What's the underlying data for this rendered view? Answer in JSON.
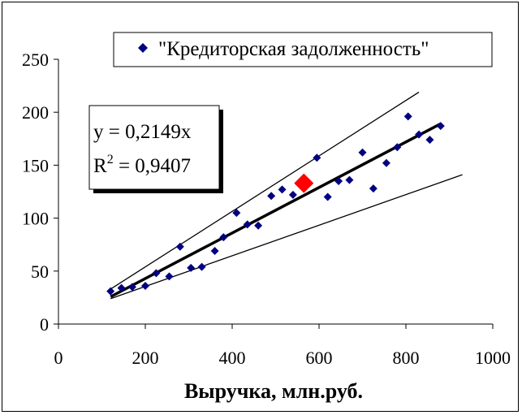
{
  "chart_data": {
    "type": "scatter",
    "xlabel": "Выручка, млн.руб.",
    "ylabel": "",
    "xlim": [
      0,
      1000
    ],
    "ylim": [
      0,
      250
    ],
    "x_ticks": [
      "0",
      "200",
      "400",
      "600",
      "800",
      "1000"
    ],
    "y_ticks": [
      "0",
      "50",
      "100",
      "150",
      "200",
      "250"
    ],
    "grid": false,
    "legend": {
      "position": "top-right",
      "label": "\"Кредиторская задолженность\""
    },
    "equation": {
      "line1": "y = 0,2149x",
      "r_prefix": "R",
      "r_exp": "2",
      "r_value": " = 0,9407"
    },
    "series": [
      {
        "name": "\"Кредиторская задолженность\"",
        "color": "#000080",
        "marker": "diamond",
        "points": [
          [
            120,
            31
          ],
          [
            145,
            34
          ],
          [
            170,
            35
          ],
          [
            200,
            36
          ],
          [
            225,
            48
          ],
          [
            255,
            45
          ],
          [
            280,
            73
          ],
          [
            305,
            53
          ],
          [
            330,
            54
          ],
          [
            360,
            69
          ],
          [
            380,
            82
          ],
          [
            410,
            105
          ],
          [
            435,
            94
          ],
          [
            460,
            93
          ],
          [
            490,
            121
          ],
          [
            515,
            127
          ],
          [
            540,
            122
          ],
          [
            595,
            157
          ],
          [
            620,
            120
          ],
          [
            645,
            135
          ],
          [
            670,
            136
          ],
          [
            700,
            162
          ],
          [
            725,
            128
          ],
          [
            755,
            152
          ],
          [
            780,
            167
          ],
          [
            805,
            196
          ],
          [
            830,
            179
          ],
          [
            855,
            174
          ],
          [
            880,
            187
          ]
        ]
      }
    ],
    "highlight_point": {
      "x": 565,
      "y": 133,
      "color": "#ff0000"
    },
    "trend_line": {
      "slope": 0.2149,
      "x_start": 120,
      "x_end": 880,
      "color": "#000000"
    },
    "upper_bound": {
      "x_start": 120,
      "y_start": 33,
      "x_end": 830,
      "y_end": 219
    },
    "lower_bound": {
      "x_start": 120,
      "y_start": 24,
      "x_end": 930,
      "y_end": 141
    }
  }
}
